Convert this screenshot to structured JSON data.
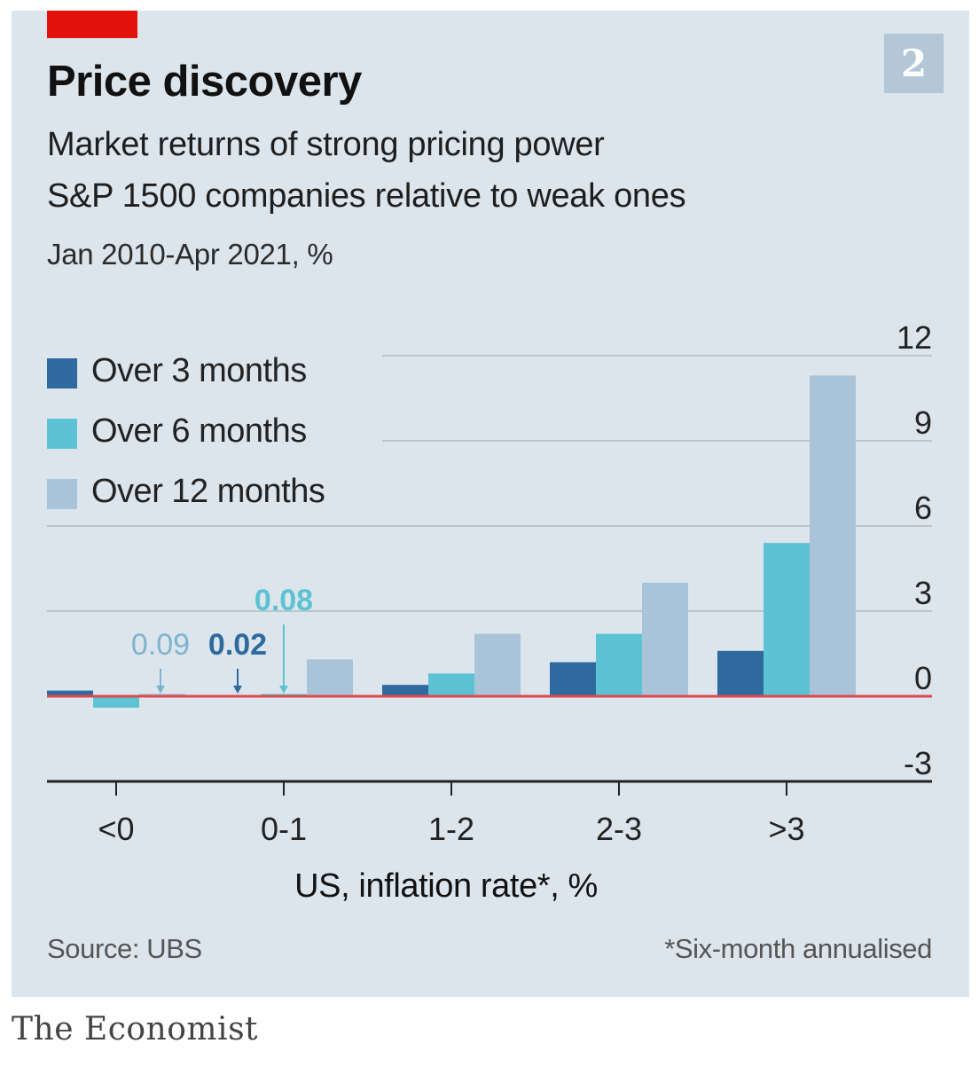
{
  "header": {
    "title": "Price discovery",
    "subtitle_line1": "Market returns of strong pricing power",
    "subtitle_line2": "S&P 1500 companies relative to weak ones",
    "period": "Jan 2010-Apr 2021, %",
    "chart_number": "2"
  },
  "footer": {
    "source": "Source: UBS",
    "footnote": "*Six-month annualised",
    "brand": "The Economist"
  },
  "colors": {
    "accent": "#e3120b",
    "zero_line": "#e0484a",
    "series": [
      "#2e6a9e",
      "#5bc3d4",
      "#a9c4d9"
    ]
  },
  "chart_data": {
    "type": "bar",
    "categories": [
      "<0",
      "0-1",
      "1-2",
      "2-3",
      ">3"
    ],
    "series": [
      {
        "name": "Over 3 months",
        "values": [
          0.2,
          0.02,
          0.4,
          1.2,
          1.6
        ]
      },
      {
        "name": "Over 6 months",
        "values": [
          -0.4,
          0.08,
          0.8,
          2.2,
          5.4
        ]
      },
      {
        "name": "Over 12 months",
        "values": [
          0.09,
          1.3,
          2.2,
          4.0,
          11.3
        ]
      }
    ],
    "xlabel": "US, inflation rate*, %",
    "ylabel": "",
    "ylim": [
      -3,
      12
    ],
    "yticks": [
      -3,
      0,
      3,
      6,
      9,
      12
    ],
    "y_axis_side": "right",
    "grid": true,
    "legend_position": "top-left",
    "annotations": [
      {
        "text": "0.09",
        "category": "<0",
        "series": "Over 12 months"
      },
      {
        "text": "0.02",
        "category": "0-1",
        "series": "Over 3 months"
      },
      {
        "text": "0.08",
        "category": "0-1",
        "series": "Over 6 months"
      }
    ]
  }
}
